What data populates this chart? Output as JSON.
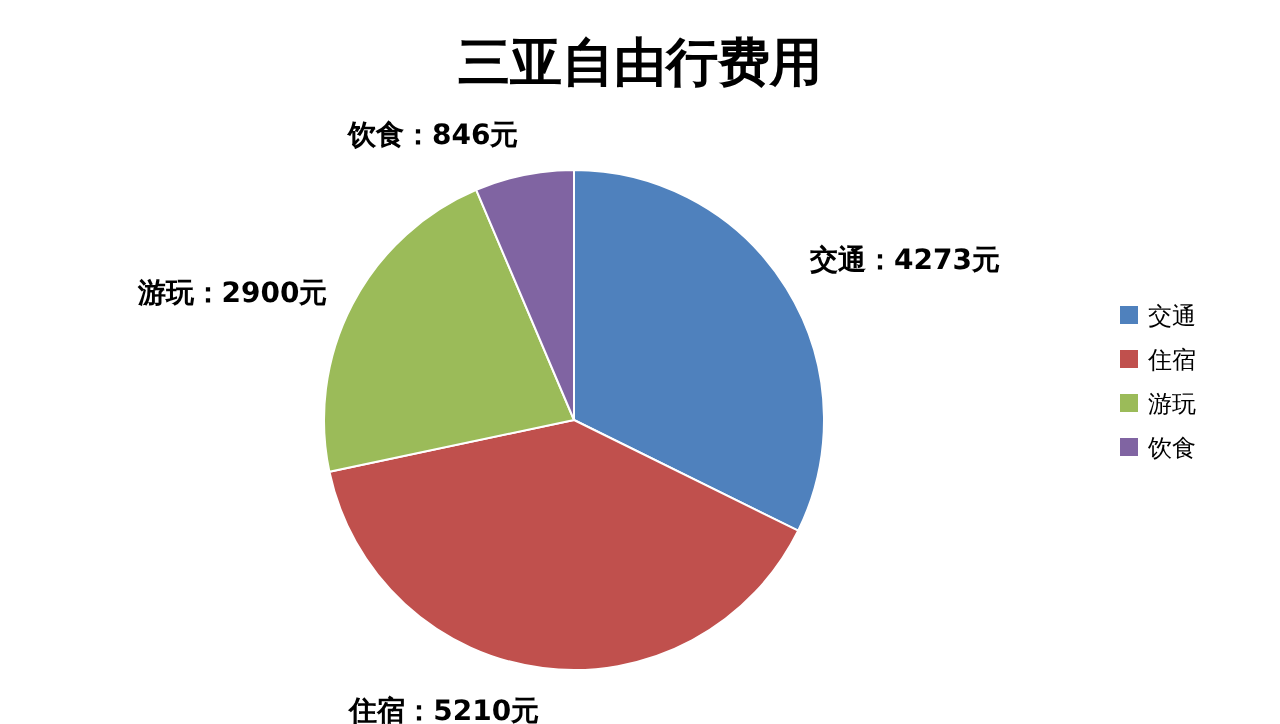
{
  "chart_data": {
    "type": "pie",
    "title": "三亚自由行费用",
    "categories": [
      "交通",
      "住宿",
      "游玩",
      "饮食"
    ],
    "values": [
      4273,
      5210,
      2900,
      846
    ],
    "colors": [
      "#4f81bd",
      "#c0504d",
      "#9bbb59",
      "#8064a2"
    ],
    "value_labels": [
      "交通：4273元",
      "住宿：5210元",
      "游玩：2900元",
      "饮食：846元"
    ],
    "legend": "right"
  }
}
